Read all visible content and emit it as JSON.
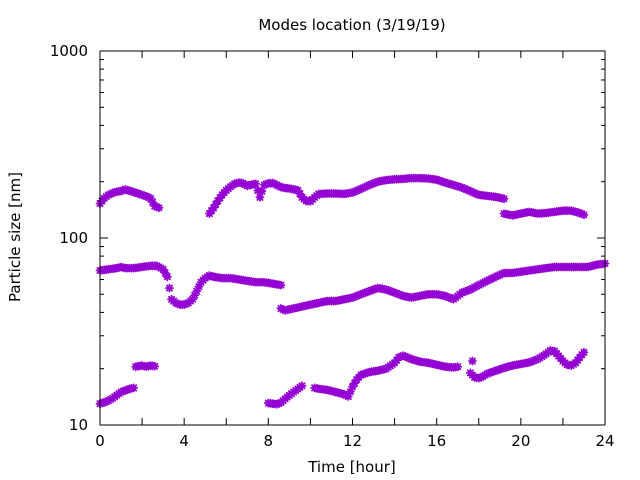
{
  "chart_data": {
    "type": "scatter",
    "title": "Modes location (3/19/19)",
    "xlabel": "Time [hour]",
    "ylabel": "Particle size [nm]",
    "xlim": [
      0,
      24
    ],
    "ylim": [
      10,
      1000
    ],
    "yscale": "log",
    "x_ticks": [
      0,
      4,
      8,
      12,
      16,
      20,
      24
    ],
    "x_tick_labels": [
      "0",
      "4",
      "8",
      "12",
      "16",
      "20",
      "24"
    ],
    "y_ticks": [
      10,
      100,
      1000
    ],
    "y_tick_labels": [
      "10",
      "100",
      "1000"
    ],
    "grid": false,
    "legend": "none",
    "marker_color": "#9400d3",
    "series": [
      {
        "points": [
          [
            0.0,
            153
          ],
          [
            0.2,
            163
          ],
          [
            0.4,
            170
          ],
          [
            0.6,
            174
          ],
          [
            0.8,
            177
          ],
          [
            1.0,
            178
          ],
          [
            1.2,
            182
          ],
          [
            1.4,
            179
          ],
          [
            1.6,
            176
          ],
          [
            1.8,
            173
          ],
          [
            2.0,
            170
          ],
          [
            2.2,
            167
          ],
          [
            2.4,
            163
          ],
          [
            2.6,
            148
          ],
          [
            2.8,
            145
          ],
          [
            5.2,
            135
          ],
          [
            5.4,
            145
          ],
          [
            5.6,
            158
          ],
          [
            5.8,
            170
          ],
          [
            6.0,
            180
          ],
          [
            6.2,
            188
          ],
          [
            6.4,
            195
          ],
          [
            6.6,
            198
          ],
          [
            6.8,
            196
          ],
          [
            7.0,
            190
          ],
          [
            7.2,
            193
          ],
          [
            7.4,
            195
          ],
          [
            7.6,
            165
          ],
          [
            7.8,
            192
          ],
          [
            8.0,
            196
          ],
          [
            8.2,
            197
          ],
          [
            8.4,
            192
          ],
          [
            8.6,
            187
          ],
          [
            8.8,
            185
          ],
          [
            9.0,
            184
          ],
          [
            9.2,
            182
          ],
          [
            9.4,
            180
          ],
          [
            9.6,
            165
          ],
          [
            9.8,
            158
          ],
          [
            10.0,
            157
          ],
          [
            10.2,
            165
          ],
          [
            10.4,
            172
          ],
          [
            10.8,
            173
          ],
          [
            11.2,
            173
          ],
          [
            11.6,
            172
          ],
          [
            12.0,
            175
          ],
          [
            12.4,
            183
          ],
          [
            12.8,
            192
          ],
          [
            13.2,
            200
          ],
          [
            13.6,
            204
          ],
          [
            14.0,
            206
          ],
          [
            14.4,
            207
          ],
          [
            14.8,
            209
          ],
          [
            15.2,
            209
          ],
          [
            15.6,
            208
          ],
          [
            16.0,
            205
          ],
          [
            16.4,
            198
          ],
          [
            16.8,
            192
          ],
          [
            17.2,
            186
          ],
          [
            17.6,
            178
          ],
          [
            18.0,
            170
          ],
          [
            18.4,
            168
          ],
          [
            18.8,
            166
          ],
          [
            19.2,
            162
          ],
          [
            19.2,
            135
          ],
          [
            19.6,
            132
          ],
          [
            20.0,
            135
          ],
          [
            20.4,
            138
          ],
          [
            20.8,
            135
          ],
          [
            21.2,
            136
          ],
          [
            21.6,
            138
          ],
          [
            22.0,
            140
          ],
          [
            22.4,
            140
          ],
          [
            22.8,
            136
          ],
          [
            23.0,
            133
          ]
        ]
      },
      {
        "points": [
          [
            0.0,
            67
          ],
          [
            0.4,
            68
          ],
          [
            0.8,
            69
          ],
          [
            1.0,
            70
          ],
          [
            1.2,
            69
          ],
          [
            1.6,
            69
          ],
          [
            2.0,
            70
          ],
          [
            2.4,
            71
          ],
          [
            2.7,
            71
          ],
          [
            3.0,
            68
          ],
          [
            3.2,
            62
          ],
          [
            3.4,
            47
          ],
          [
            3.6,
            45
          ],
          [
            3.8,
            44
          ],
          [
            4.0,
            44
          ],
          [
            4.2,
            45
          ],
          [
            4.4,
            47
          ],
          [
            4.6,
            52
          ],
          [
            4.8,
            58
          ],
          [
            5.0,
            61
          ],
          [
            5.2,
            63
          ],
          [
            5.4,
            62
          ],
          [
            5.8,
            61
          ],
          [
            6.2,
            61
          ],
          [
            6.6,
            60
          ],
          [
            7.0,
            59
          ],
          [
            7.4,
            58
          ],
          [
            7.8,
            58
          ],
          [
            8.2,
            57
          ],
          [
            8.6,
            56
          ],
          [
            8.6,
            42
          ],
          [
            8.8,
            41
          ],
          [
            9.2,
            42
          ],
          [
            9.6,
            43
          ],
          [
            10.0,
            44
          ],
          [
            10.4,
            45
          ],
          [
            10.8,
            46
          ],
          [
            11.2,
            46
          ],
          [
            11.6,
            47
          ],
          [
            12.0,
            48
          ],
          [
            12.4,
            50
          ],
          [
            12.8,
            52
          ],
          [
            13.2,
            54
          ],
          [
            13.6,
            53
          ],
          [
            14.0,
            51
          ],
          [
            14.4,
            49
          ],
          [
            14.8,
            48
          ],
          [
            15.2,
            49
          ],
          [
            15.6,
            50
          ],
          [
            16.0,
            50
          ],
          [
            16.4,
            49
          ],
          [
            16.8,
            47
          ],
          [
            17.2,
            51
          ],
          [
            17.6,
            53
          ],
          [
            18.0,
            56
          ],
          [
            18.4,
            59
          ],
          [
            18.8,
            62
          ],
          [
            19.2,
            65
          ],
          [
            19.6,
            65
          ],
          [
            20.0,
            66
          ],
          [
            20.4,
            67
          ],
          [
            20.8,
            68
          ],
          [
            21.2,
            69
          ],
          [
            21.6,
            70
          ],
          [
            22.0,
            70
          ],
          [
            22.4,
            70
          ],
          [
            22.8,
            70
          ],
          [
            23.2,
            70
          ],
          [
            23.6,
            72
          ],
          [
            24.0,
            73
          ]
        ]
      },
      {
        "points": [
          [
            0.0,
            13
          ],
          [
            0.2,
            13.2
          ],
          [
            0.4,
            13.5
          ],
          [
            0.6,
            13.9
          ],
          [
            1.0,
            15
          ],
          [
            1.2,
            15.3
          ],
          [
            1.4,
            15.6
          ],
          [
            1.6,
            15.8
          ],
          [
            1.7,
            20.5
          ],
          [
            2.0,
            20.8
          ],
          [
            2.2,
            20.5
          ],
          [
            2.4,
            20.8
          ],
          [
            2.6,
            20.6
          ],
          [
            8.0,
            13.1
          ],
          [
            8.2,
            13
          ],
          [
            8.4,
            12.9
          ],
          [
            8.6,
            13.2
          ],
          [
            8.8,
            13.8
          ],
          [
            9.0,
            14.4
          ],
          [
            9.2,
            15
          ],
          [
            9.4,
            15.6
          ],
          [
            9.6,
            16.2
          ],
          [
            10.2,
            15.8
          ],
          [
            10.4,
            15.6
          ],
          [
            10.8,
            15.4
          ],
          [
            11.2,
            15
          ],
          [
            11.6,
            14.6
          ],
          [
            11.8,
            14.2
          ],
          [
            12.0,
            16
          ],
          [
            12.2,
            17.5
          ],
          [
            12.4,
            18.5
          ],
          [
            12.8,
            19.2
          ],
          [
            13.2,
            19.5
          ],
          [
            13.6,
            20
          ],
          [
            14.0,
            21.5
          ],
          [
            14.2,
            23
          ],
          [
            14.4,
            23.5
          ],
          [
            14.8,
            22.5
          ],
          [
            15.2,
            21.8
          ],
          [
            15.6,
            21.5
          ],
          [
            16.0,
            21
          ],
          [
            16.4,
            20.5
          ],
          [
            16.8,
            20.3
          ],
          [
            17.0,
            20.5
          ],
          [
            17.6,
            19
          ],
          [
            17.8,
            18
          ],
          [
            18.0,
            17.8
          ],
          [
            18.2,
            18.2
          ],
          [
            18.4,
            18.8
          ],
          [
            18.8,
            19.5
          ],
          [
            19.2,
            20.2
          ],
          [
            19.6,
            20.8
          ],
          [
            20.0,
            21.2
          ],
          [
            20.4,
            21.6
          ],
          [
            20.8,
            22.5
          ],
          [
            21.2,
            24
          ],
          [
            21.4,
            25
          ],
          [
            21.6,
            24.8
          ],
          [
            22.0,
            22
          ],
          [
            22.2,
            21
          ],
          [
            22.4,
            20.8
          ],
          [
            22.6,
            21.5
          ],
          [
            22.8,
            23
          ],
          [
            23.0,
            24.5
          ],
          [
            17.7,
            22
          ]
        ]
      }
    ]
  }
}
